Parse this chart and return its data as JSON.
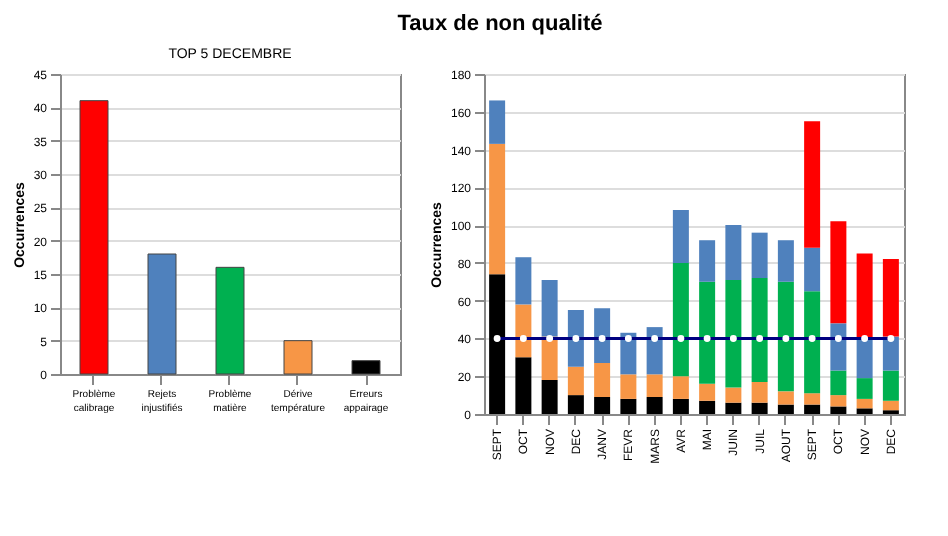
{
  "chart_data": [
    {
      "type": "other",
      "title": "Taux de non qualité"
    },
    {
      "type": "bar",
      "title": "TOP 5 DECEMBRE",
      "ylabel": "Occurrences",
      "categories": [
        "Problème calibrage",
        "Rejets injustifiés",
        "Problème matière",
        "Dérive température",
        "Erreurs appairage"
      ],
      "values": [
        41,
        18,
        16,
        5,
        2
      ],
      "colors": [
        "#ff0000",
        "#4f81bd",
        "#00b050",
        "#f79646",
        "#000000"
      ],
      "ylim": [
        0,
        45
      ],
      "yticks": [
        0,
        5,
        10,
        15,
        20,
        25,
        30,
        35,
        40,
        45
      ],
      "grid": "y"
    },
    {
      "type": "bar",
      "stacked": true,
      "ylabel": "Occurrences",
      "categories": [
        "SEPT",
        "OCT",
        "NOV",
        "DEC",
        "JANV",
        "FEVR",
        "MARS",
        "AVR",
        "MAI",
        "JUIN",
        "JUIL",
        "AOUT",
        "SEPT",
        "OCT",
        "NOV",
        "DEC"
      ],
      "series": [
        {
          "color": "#000000",
          "values": [
            74,
            30,
            18,
            10,
            9,
            8,
            9,
            8,
            7,
            6,
            6,
            5,
            5,
            4,
            3,
            2
          ]
        },
        {
          "color": "#f79646",
          "values": [
            69,
            28,
            23,
            15,
            18,
            13,
            12,
            12,
            9,
            8,
            11,
            7,
            6,
            6,
            5,
            5
          ]
        },
        {
          "color": "#00b050",
          "values": [
            null,
            null,
            null,
            null,
            null,
            null,
            null,
            60,
            54,
            57,
            55,
            58,
            54,
            13,
            11,
            16
          ]
        },
        {
          "color": "#4f81bd",
          "values": [
            23,
            25,
            30,
            30,
            29,
            22,
            25,
            28,
            22,
            29,
            24,
            22,
            23,
            25,
            21,
            18
          ]
        },
        {
          "color": "#ff0000",
          "values": [
            null,
            null,
            null,
            null,
            null,
            null,
            null,
            null,
            null,
            null,
            null,
            null,
            67,
            54,
            45,
            41
          ]
        },
        {
          "type": "line",
          "color": "#000080",
          "marker": "circle",
          "values": [
            40,
            40,
            40,
            40,
            40,
            40,
            40,
            40,
            40,
            40,
            40,
            40,
            40,
            40,
            40,
            40
          ]
        }
      ],
      "ylim": [
        0,
        180
      ],
      "yticks": [
        0,
        20,
        40,
        60,
        80,
        100,
        120,
        140,
        160,
        180
      ],
      "grid": "y"
    }
  ]
}
